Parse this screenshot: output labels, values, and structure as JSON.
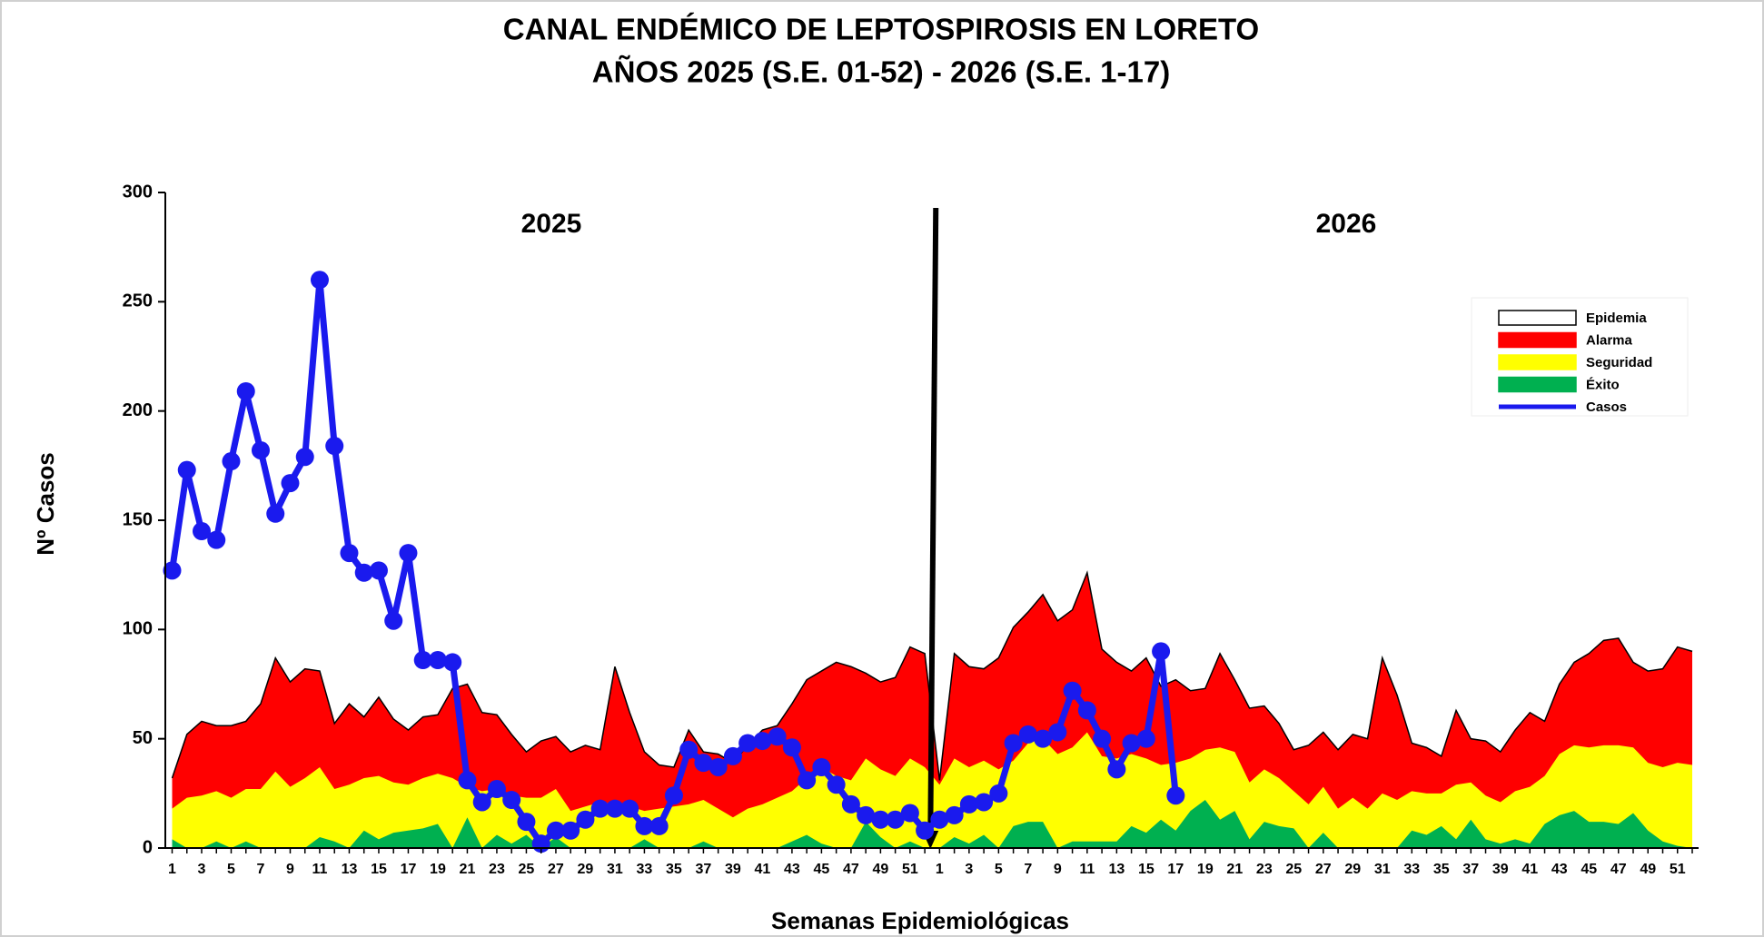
{
  "chart_data": {
    "type": "endemic-channel",
    "title": [
      "CANAL ENDÉMICO DE LEPTOSPIROSIS EN LORETO",
      "AÑOS 2025 (S.E. 01-52) - 2026 (S.E. 1-17)"
    ],
    "annotations": [
      "2025",
      "2026"
    ],
    "x_label": "Semanas Epidemiológicas",
    "y_label": "Nº Casos",
    "ylim": [
      0,
      300
    ],
    "yticks": [
      0,
      50,
      100,
      150,
      200,
      250,
      300
    ],
    "grid": false,
    "legend": "upper right",
    "categories": [
      "1",
      null,
      "3",
      null,
      "5",
      null,
      "7",
      null,
      "9",
      null,
      "11",
      null,
      "13",
      null,
      "15",
      null,
      "17",
      null,
      "19",
      null,
      "21",
      null,
      "23",
      null,
      "25",
      null,
      "27",
      null,
      "29",
      null,
      "31",
      null,
      "33",
      null,
      "35",
      null,
      "37",
      null,
      "39",
      null,
      "41",
      null,
      "43",
      null,
      "45",
      null,
      "47",
      null,
      "49",
      null,
      "51",
      null,
      "1",
      null,
      "3",
      null,
      "5",
      null,
      "7",
      null,
      "9",
      null,
      "11",
      null,
      "13",
      null,
      "15",
      null,
      "17",
      null,
      "19",
      null,
      "21",
      null,
      "23",
      null,
      "25",
      null,
      "27",
      null,
      "29",
      null,
      "31",
      null,
      "33",
      null,
      "35",
      null,
      "37",
      null,
      "39",
      null,
      "41",
      null,
      "43",
      null,
      "45",
      null,
      "47",
      null,
      "49",
      null,
      "51",
      null
    ],
    "series": [
      {
        "name": "Epidemia",
        "color": "#ffffff",
        "style": "area"
      },
      {
        "name": "Alarma",
        "color": "#ff0000",
        "style": "area",
        "values": [
          32,
          52,
          58,
          56,
          56,
          58,
          66,
          87,
          76,
          82,
          81,
          57,
          66,
          60,
          69,
          59,
          54,
          60,
          61,
          73,
          75,
          62,
          61,
          52,
          44,
          49,
          51,
          44,
          47,
          45,
          83,
          62,
          44,
          38,
          37,
          54,
          44,
          43,
          39,
          47,
          54,
          56,
          66,
          77,
          81,
          85,
          83,
          80,
          76,
          78,
          92,
          89,
          31,
          89,
          83,
          82,
          87,
          101,
          108,
          116,
          104,
          109,
          126,
          91,
          85,
          81,
          87,
          74,
          77,
          72,
          73,
          89,
          77,
          64,
          65,
          57,
          45,
          47,
          53,
          45,
          52,
          50,
          87,
          70,
          48,
          46,
          42,
          63,
          50,
          49,
          44,
          54,
          62,
          58,
          75,
          85,
          89,
          95,
          96,
          85,
          81,
          82,
          92,
          90
        ]
      },
      {
        "name": "Seguridad",
        "color": "#ffff00",
        "style": "area",
        "values": [
          18,
          23,
          24,
          26,
          23,
          27,
          27,
          35,
          28,
          32,
          37,
          27,
          29,
          32,
          33,
          30,
          29,
          32,
          34,
          32,
          28,
          26,
          27,
          24,
          23,
          23,
          27,
          17,
          19,
          21,
          20,
          19,
          17,
          18,
          19,
          20,
          22,
          18,
          14,
          18,
          20,
          23,
          26,
          32,
          37,
          33,
          31,
          41,
          36,
          33,
          41,
          37,
          29,
          41,
          37,
          40,
          36,
          40,
          48,
          50,
          43,
          46,
          53,
          42,
          41,
          43,
          41,
          38,
          39,
          41,
          45,
          46,
          44,
          30,
          36,
          32,
          26,
          20,
          28,
          18,
          23,
          18,
          25,
          22,
          26,
          25,
          25,
          29,
          30,
          24,
          21,
          26,
          28,
          33,
          43,
          47,
          46,
          47,
          47,
          46,
          39,
          37,
          39,
          38
        ]
      },
      {
        "name": "Éxito",
        "color": "#00b050",
        "style": "area",
        "values": [
          4,
          0,
          0,
          3,
          0,
          3,
          0,
          0,
          0,
          0,
          5,
          3,
          0,
          8,
          4,
          7,
          8,
          9,
          11,
          0,
          14,
          0,
          6,
          2,
          6,
          0,
          5,
          0,
          0,
          0,
          0,
          0,
          4,
          0,
          0,
          0,
          3,
          0,
          0,
          0,
          0,
          0,
          3,
          6,
          2,
          0,
          0,
          12,
          5,
          0,
          3,
          0,
          0,
          5,
          2,
          6,
          0,
          10,
          12,
          12,
          0,
          3,
          3,
          3,
          3,
          10,
          7,
          13,
          8,
          17,
          22,
          13,
          17,
          4,
          12,
          10,
          9,
          0,
          7,
          0,
          0,
          0,
          0,
          0,
          8,
          6,
          10,
          4,
          13,
          4,
          2,
          4,
          2,
          11,
          15,
          17,
          12,
          12,
          11,
          16,
          8,
          3,
          1,
          0
        ]
      },
      {
        "name": "Casos",
        "color": "#1a1aee",
        "style": "line",
        "values": [
          127,
          173,
          145,
          141,
          177,
          209,
          182,
          153,
          167,
          179,
          260,
          184,
          135,
          126,
          127,
          104,
          135,
          86,
          86,
          85,
          31,
          21,
          27,
          22,
          12,
          2,
          8,
          8,
          13,
          18,
          18,
          18,
          10,
          10,
          24,
          45,
          39,
          37,
          42,
          48,
          49,
          51,
          46,
          31,
          37,
          29,
          20,
          15,
          13,
          13,
          16,
          8,
          13,
          15,
          20,
          21,
          25,
          48,
          52,
          50,
          53,
          72,
          63,
          50,
          36,
          48,
          50,
          90,
          24,
          null,
          null,
          null,
          null,
          null,
          null,
          null,
          null,
          null,
          null,
          null,
          null,
          null,
          null,
          null,
          null,
          null,
          null,
          null,
          null,
          null,
          null,
          null,
          null,
          null,
          null,
          null,
          null,
          null,
          null,
          null,
          null,
          null,
          null,
          null
        ]
      }
    ]
  }
}
